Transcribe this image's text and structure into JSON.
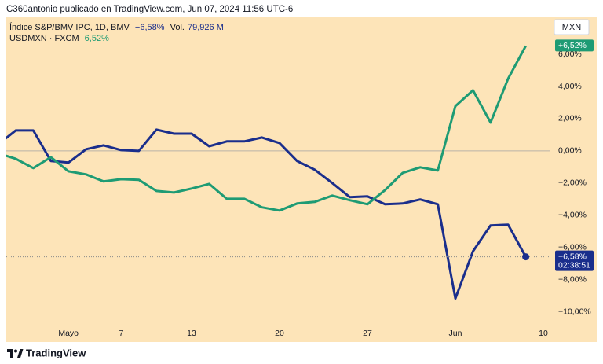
{
  "header": "C360antonio publicado en TradingView.com, Jun 07, 2024 11:56 UTC-6",
  "footer": "TradingView",
  "chart_data": {
    "type": "line",
    "background": "#fde4b8",
    "currency": "MXN",
    "categories": [
      null,
      null,
      null,
      null,
      "Mayo",
      null,
      null,
      "7",
      null,
      null,
      null,
      "13",
      null,
      null,
      null,
      null,
      "20",
      null,
      null,
      null,
      null,
      "27",
      null,
      null,
      null,
      null,
      "Jun",
      null,
      null,
      null,
      null,
      "10"
    ],
    "ylim": [
      -10.9,
      8.3
    ],
    "yticks": [
      {
        "value": 6,
        "label": "6,00%"
      },
      {
        "value": 4,
        "label": "4,00%"
      },
      {
        "value": 2,
        "label": "2,00%"
      },
      {
        "value": 0,
        "label": "0,00%"
      },
      {
        "value": -2,
        "label": "−2,00%"
      },
      {
        "value": -4,
        "label": "−4,00%"
      },
      {
        "value": -6,
        "label": "−6,00%"
      },
      {
        "value": -8,
        "label": "−8,00%"
      },
      {
        "value": -10,
        "label": "−10,00%"
      }
    ],
    "zero_line": true,
    "grid": false,
    "series": [
      {
        "name": "Índice S&P/BMV IPC, 1D, BMV",
        "color": "#1a2e8c",
        "legend_value": "−6,58%",
        "volume_title": "Vol.",
        "volume": "79,926 M",
        "countdown": "02:38:51",
        "price_line": true,
        "values": [
          0.4,
          1.27,
          1.27,
          -0.63,
          -0.73,
          0.1,
          0.34,
          0.05,
          0.0,
          1.32,
          1.07,
          1.07,
          0.29,
          0.59,
          0.59,
          0.83,
          0.49,
          -0.63,
          -1.17,
          -2.0,
          -2.88,
          -2.83,
          -3.32,
          -3.27,
          -3.02,
          -3.32,
          -9.17,
          -6.24,
          -4.63,
          -4.59,
          -6.58,
          null
        ],
        "value_labels": [
          null,
          null,
          null,
          null,
          null,
          null,
          null,
          null,
          null,
          null,
          null,
          null,
          null,
          null,
          null,
          null,
          null,
          null,
          null,
          null,
          null,
          null,
          null,
          null,
          null,
          null,
          null,
          null,
          null,
          null,
          "−6,58%",
          null
        ]
      },
      {
        "name": "USDMXN · FXCM",
        "color": "#1e9b74",
        "legend_value": "6,52%",
        "price_line": false,
        "values": [
          -0.15,
          -0.49,
          -1.07,
          -0.39,
          -1.27,
          -1.46,
          -1.9,
          -1.76,
          -1.8,
          -2.49,
          -2.59,
          -2.34,
          -2.05,
          -2.98,
          -2.98,
          -3.51,
          -3.71,
          -3.27,
          -3.17,
          -2.78,
          -3.07,
          -3.32,
          -2.44,
          -1.37,
          -1.02,
          -1.22,
          2.78,
          3.76,
          1.76,
          4.49,
          6.52,
          null
        ],
        "value_labels": [
          null,
          null,
          null,
          null,
          null,
          null,
          null,
          null,
          null,
          null,
          null,
          null,
          null,
          null,
          null,
          null,
          null,
          null,
          null,
          null,
          null,
          null,
          null,
          null,
          null,
          null,
          null,
          null,
          null,
          null,
          "+6,52%",
          null
        ]
      }
    ]
  }
}
